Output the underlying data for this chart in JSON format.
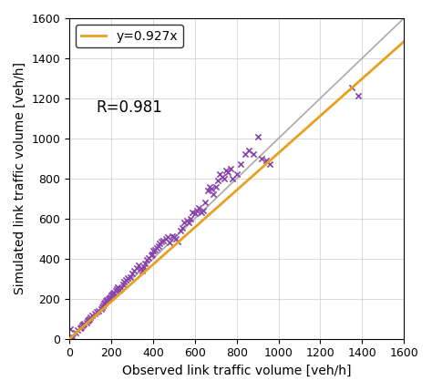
{
  "title": "",
  "xlabel": "Observed link traffic volume [veh/h]",
  "ylabel": "Simulated link traffic volume [veh/h]",
  "xlim": [
    0,
    1600
  ],
  "ylim": [
    0,
    1600
  ],
  "xticks": [
    0,
    200,
    400,
    600,
    800,
    1000,
    1200,
    1400,
    1600
  ],
  "yticks": [
    0,
    200,
    400,
    600,
    800,
    1000,
    1200,
    1400,
    1600
  ],
  "regression_slope": 0.927,
  "regression_label": "y=0.927x",
  "r_value": "R=0.981",
  "regression_color": "#E8A020",
  "identity_color": "#AAAAAA",
  "scatter_color": "#8844AA",
  "scatter_marker": "x",
  "scatter_size": 20,
  "scatter_linewidth": 1.2,
  "grid_color": "#CCCCCC",
  "background_color": "#FFFFFF",
  "legend_fontsize": 10,
  "axis_fontsize": 10,
  "annotation_fontsize": 12,
  "scatter_x": [
    5,
    15,
    30,
    40,
    50,
    55,
    60,
    65,
    70,
    80,
    85,
    90,
    95,
    100,
    110,
    120,
    130,
    140,
    150,
    155,
    160,
    165,
    170,
    175,
    180,
    185,
    190,
    195,
    200,
    205,
    210,
    215,
    220,
    225,
    230,
    240,
    250,
    255,
    260,
    270,
    280,
    290,
    300,
    310,
    320,
    330,
    340,
    350,
    355,
    360,
    370,
    380,
    390,
    395,
    400,
    410,
    420,
    425,
    430,
    440,
    450,
    460,
    470,
    480,
    490,
    500,
    510,
    520,
    530,
    540,
    550,
    560,
    570,
    580,
    590,
    600,
    610,
    620,
    630,
    640,
    650,
    660,
    670,
    680,
    690,
    700,
    710,
    720,
    730,
    740,
    750,
    760,
    770,
    780,
    800,
    820,
    840,
    860,
    880,
    900,
    920,
    940,
    960,
    1350,
    1380
  ],
  "scatter_y": [
    50,
    10,
    30,
    45,
    55,
    60,
    65,
    70,
    75,
    80,
    90,
    95,
    100,
    110,
    115,
    125,
    135,
    140,
    150,
    160,
    165,
    175,
    180,
    190,
    195,
    200,
    205,
    210,
    215,
    220,
    225,
    230,
    240,
    250,
    260,
    245,
    255,
    270,
    285,
    295,
    305,
    310,
    325,
    340,
    355,
    365,
    350,
    340,
    360,
    375,
    395,
    405,
    415,
    420,
    440,
    445,
    455,
    465,
    475,
    485,
    490,
    500,
    510,
    480,
    515,
    510,
    500,
    485,
    540,
    555,
    580,
    590,
    580,
    600,
    630,
    625,
    640,
    655,
    630,
    640,
    680,
    740,
    760,
    750,
    720,
    760,
    790,
    820,
    810,
    800,
    840,
    830,
    850,
    800,
    820,
    870,
    920,
    940,
    920,
    1010,
    900,
    890,
    870,
    1255,
    1215
  ]
}
